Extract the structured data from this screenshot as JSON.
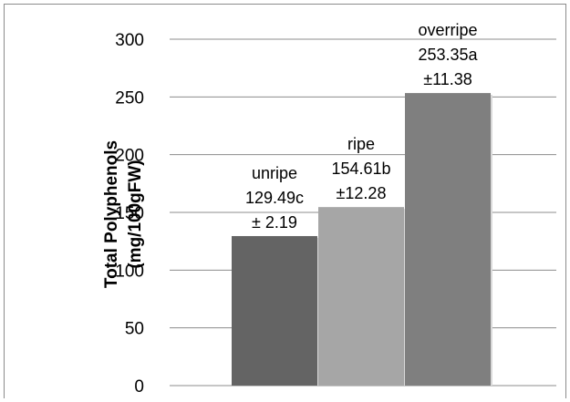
{
  "chart_data": {
    "type": "bar",
    "categories": [
      "unripe",
      "ripe",
      "overripe"
    ],
    "values": [
      129.49,
      154.61,
      253.35
    ],
    "data_labels": [
      [
        "unripe",
        "129.49c",
        "± 2.19"
      ],
      [
        "ripe",
        "154.61b",
        "±12.28"
      ],
      [
        "overripe",
        "253.35a",
        "±11.38"
      ]
    ],
    "colors": [
      "#646464",
      "#a6a6a6",
      "#7f7f7f"
    ],
    "ylabel": [
      "Total Polyphenols",
      "(mg/100gFW)"
    ],
    "ylim": [
      0,
      300
    ],
    "yticks": [
      "0",
      "50",
      "100",
      "150",
      "200",
      "250",
      "300"
    ],
    "grid": true
  }
}
